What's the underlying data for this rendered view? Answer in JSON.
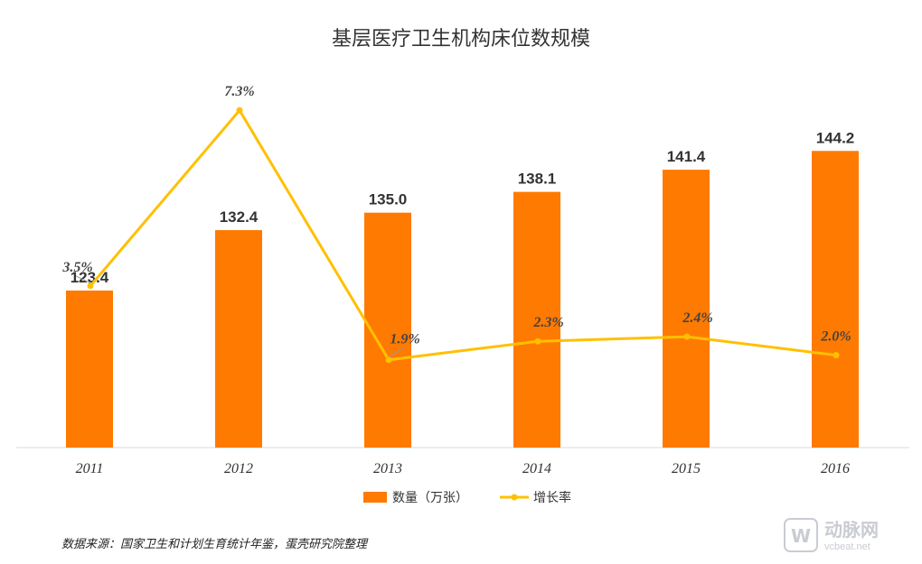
{
  "chart_data": {
    "type": "bar+line",
    "title": "基层医疗卫生机构床位数规模",
    "categories": [
      "2011",
      "2012",
      "2013",
      "2014",
      "2015",
      "2016"
    ],
    "series": [
      {
        "name": "数量（万张）",
        "type": "bar",
        "color": "#FF7A00",
        "values": [
          123.4,
          132.4,
          135.0,
          138.1,
          141.4,
          144.2
        ],
        "labels": [
          "123.4",
          "132.4",
          "135.0",
          "138.1",
          "141.4",
          "144.2"
        ]
      },
      {
        "name": "增长率",
        "type": "line",
        "color": "#FFC000",
        "values": [
          3.5,
          7.3,
          1.9,
          2.3,
          2.4,
          2.0
        ],
        "labels": [
          "3.5%",
          "7.3%",
          "1.9%",
          "2.3%",
          "2.4%",
          "2.0%"
        ]
      }
    ],
    "bar_axis_range": [
      100,
      148
    ],
    "line_axis_range": [
      0,
      7.5
    ],
    "gridlines": false,
    "legend_position": "bottom"
  },
  "source": "数据来源：国家卫生和计划生育统计年鉴，蛋壳研究院整理",
  "watermark": {
    "cn": "动脉网",
    "en": "vcbeat.net"
  }
}
